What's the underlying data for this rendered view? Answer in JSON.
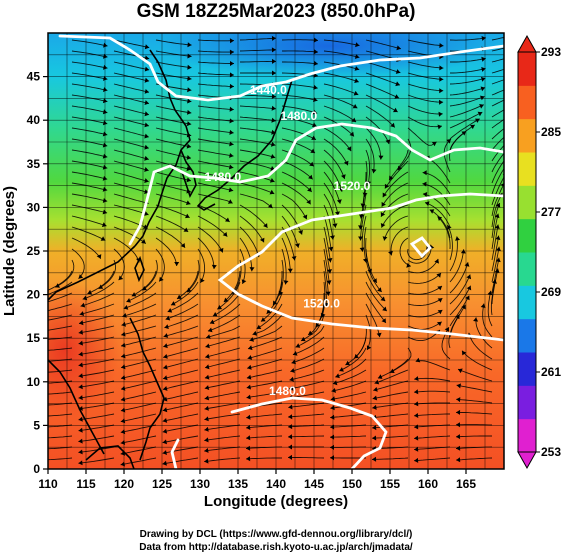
{
  "title": "GSM 18Z25Mar2023 (850.0hPa)",
  "x_axis": {
    "label": "Longitude (degrees)",
    "range": [
      110,
      170
    ],
    "ticks": [
      110,
      115,
      120,
      125,
      130,
      135,
      140,
      145,
      150,
      155,
      160,
      165
    ]
  },
  "y_axis": {
    "label": "Latitude  (degrees)",
    "range": [
      0,
      50
    ],
    "ticks": [
      0,
      5,
      10,
      15,
      20,
      25,
      30,
      35,
      40,
      45
    ]
  },
  "colorbar": {
    "ticks": [
      293,
      285,
      277,
      269,
      261,
      253
    ],
    "range": [
      253,
      293
    ],
    "colors": [
      "#e020d0",
      "#7a1ee0",
      "#2828d8",
      "#1a78e8",
      "#18c8e0",
      "#28d890",
      "#30d040",
      "#98e030",
      "#e8e020",
      "#f8a020",
      "#f86020",
      "#e82818"
    ]
  },
  "contours": [
    {
      "label": "1440.0",
      "lon": 139.0,
      "lat": 43.0
    },
    {
      "label": "1480.0",
      "lon": 143.0,
      "lat": 40.0
    },
    {
      "label": "1480.0",
      "lon": 133.0,
      "lat": 33.0
    },
    {
      "label": "1520.0",
      "lon": 150.0,
      "lat": 32.0
    },
    {
      "label": "1520.0",
      "lon": 146.0,
      "lat": 18.5
    },
    {
      "label": "1480.0",
      "lon": 141.5,
      "lat": 8.5
    }
  ],
  "credits": {
    "line1": "Drawing by DCL (https://www.gfd-dennou.org/library/dcl/)",
    "line2": "Data from http://database.rish.kyoto-u.ac.jp/arch/jmadata/"
  }
}
